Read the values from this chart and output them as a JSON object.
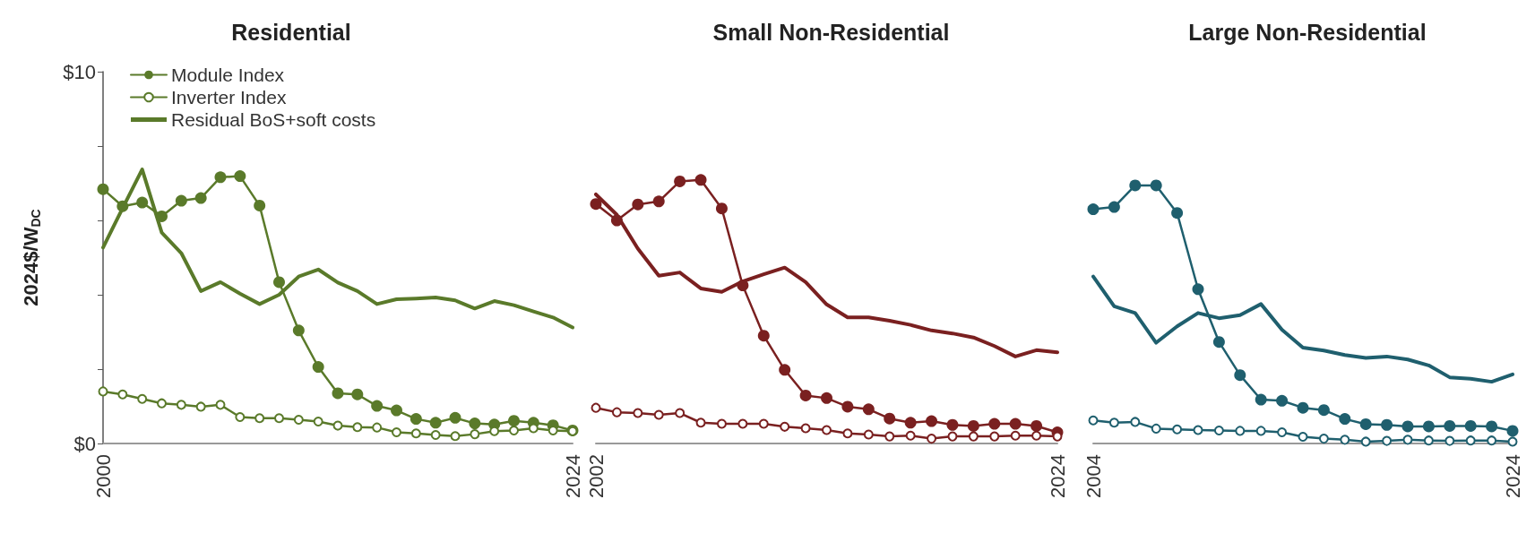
{
  "chart_data": [
    {
      "type": "line",
      "title": "Residential",
      "ylabel": "2024$/W$_{DC}$",
      "legend": "top left",
      "grid": false,
      "x": [
        2000,
        2001,
        2002,
        2003,
        2004,
        2005,
        2006,
        2007,
        2008,
        2009,
        2010,
        2011,
        2012,
        2013,
        2014,
        2015,
        2016,
        2017,
        2018,
        2019,
        2020,
        2021,
        2022,
        2023,
        2024
      ],
      "xlim": [
        2000,
        2024
      ],
      "xticks": [
        2000,
        2024
      ],
      "ylim": [
        0,
        10
      ],
      "yticks": [
        {
          "value": 0,
          "label": "$0"
        },
        {
          "value": 2,
          "label": null
        },
        {
          "value": 4,
          "label": null
        },
        {
          "value": 6,
          "label": null
        },
        {
          "value": 8,
          "label": null
        },
        {
          "value": 10,
          "label": "$10"
        }
      ],
      "series": [
        {
          "name": "Module Index",
          "color": "#5a7a2a",
          "marker": "circle",
          "values": [
            6.84,
            6.38,
            6.48,
            6.11,
            6.53,
            6.6,
            7.16,
            7.19,
            6.4,
            4.34,
            3.04,
            2.06,
            1.35,
            1.32,
            1.01,
            0.89,
            0.66,
            0.56,
            0.69,
            0.54,
            0.51,
            0.61,
            0.56,
            0.49,
            0.35
          ]
        },
        {
          "name": "Inverter Index",
          "color": "#5a7a2a",
          "marker": "open circle",
          "values": [
            1.4,
            1.32,
            1.2,
            1.08,
            1.04,
            0.99,
            1.04,
            0.71,
            0.68,
            0.68,
            0.64,
            0.59,
            0.48,
            0.44,
            0.43,
            0.3,
            0.27,
            0.23,
            0.2,
            0.25,
            0.33,
            0.35,
            0.41,
            0.35,
            0.33
          ]
        },
        {
          "name": "Residual BoS+soft costs",
          "color": "#5a7a2a",
          "marker": "none",
          "values": [
            5.27,
            6.33,
            7.37,
            5.67,
            5.12,
            4.1,
            4.34,
            4.03,
            3.75,
            4.0,
            4.49,
            4.68,
            4.33,
            4.1,
            3.75,
            3.88,
            3.9,
            3.93,
            3.85,
            3.63,
            3.83,
            3.72,
            3.55,
            3.39,
            3.12
          ]
        }
      ]
    },
    {
      "type": "line",
      "title": "Small Non-Residential",
      "legend": false,
      "grid": false,
      "tick_labels": "x",
      "x": [
        2002,
        2003,
        2004,
        2005,
        2006,
        2007,
        2008,
        2009,
        2010,
        2011,
        2012,
        2013,
        2014,
        2015,
        2016,
        2017,
        2018,
        2019,
        2020,
        2021,
        2022,
        2023,
        2024
      ],
      "xlim": [
        2002,
        2024
      ],
      "xticks": [
        2002,
        2024
      ],
      "ylim": [
        0,
        10
      ],
      "series": [
        {
          "color": "#7a2020",
          "marker": "circle",
          "values": [
            6.44,
            6.0,
            6.43,
            6.51,
            7.05,
            7.09,
            6.32,
            4.25,
            2.9,
            1.98,
            1.29,
            1.22,
            0.99,
            0.92,
            0.67,
            0.56,
            0.6,
            0.5,
            0.47,
            0.53,
            0.53,
            0.47,
            0.3
          ]
        },
        {
          "color": "#7a2020",
          "marker": "open circle",
          "values": [
            0.96,
            0.84,
            0.82,
            0.77,
            0.82,
            0.56,
            0.53,
            0.53,
            0.53,
            0.45,
            0.41,
            0.36,
            0.27,
            0.24,
            0.19,
            0.21,
            0.13,
            0.19,
            0.19,
            0.19,
            0.21,
            0.21,
            0.19
          ]
        },
        {
          "color": "#7a2020",
          "marker": "none",
          "values": [
            6.7,
            6.15,
            5.24,
            4.51,
            4.6,
            4.17,
            4.08,
            4.36,
            4.55,
            4.73,
            4.34,
            3.74,
            3.39,
            3.39,
            3.3,
            3.19,
            3.04,
            2.96,
            2.85,
            2.62,
            2.34,
            2.51,
            2.45
          ]
        }
      ]
    },
    {
      "type": "line",
      "title": "Large Non-Residential",
      "legend": false,
      "grid": false,
      "tick_labels": "x",
      "x": [
        2004,
        2005,
        2006,
        2007,
        2008,
        2009,
        2010,
        2011,
        2012,
        2013,
        2014,
        2015,
        2016,
        2017,
        2018,
        2019,
        2020,
        2021,
        2022,
        2023,
        2024
      ],
      "xlim": [
        2004,
        2024
      ],
      "xticks": [
        2004,
        2024
      ],
      "ylim": [
        0,
        10
      ],
      "series": [
        {
          "color": "#1f5f6e",
          "marker": "circle",
          "values": [
            6.3,
            6.36,
            6.94,
            6.94,
            6.2,
            4.15,
            2.73,
            1.84,
            1.18,
            1.15,
            0.96,
            0.9,
            0.66,
            0.52,
            0.5,
            0.46,
            0.46,
            0.47,
            0.47,
            0.46,
            0.34
          ]
        },
        {
          "color": "#1f5f6e",
          "marker": "open circle",
          "values": [
            0.62,
            0.56,
            0.58,
            0.4,
            0.38,
            0.36,
            0.35,
            0.34,
            0.34,
            0.3,
            0.18,
            0.13,
            0.1,
            0.05,
            0.07,
            0.1,
            0.08,
            0.07,
            0.08,
            0.08,
            0.05
          ]
        },
        {
          "color": "#1f5f6e",
          "marker": "none",
          "values": [
            4.49,
            3.69,
            3.51,
            2.71,
            3.15,
            3.51,
            3.37,
            3.45,
            3.75,
            3.06,
            2.58,
            2.5,
            2.38,
            2.3,
            2.34,
            2.26,
            2.1,
            1.78,
            1.74,
            1.66,
            1.86
          ]
        }
      ]
    }
  ]
}
